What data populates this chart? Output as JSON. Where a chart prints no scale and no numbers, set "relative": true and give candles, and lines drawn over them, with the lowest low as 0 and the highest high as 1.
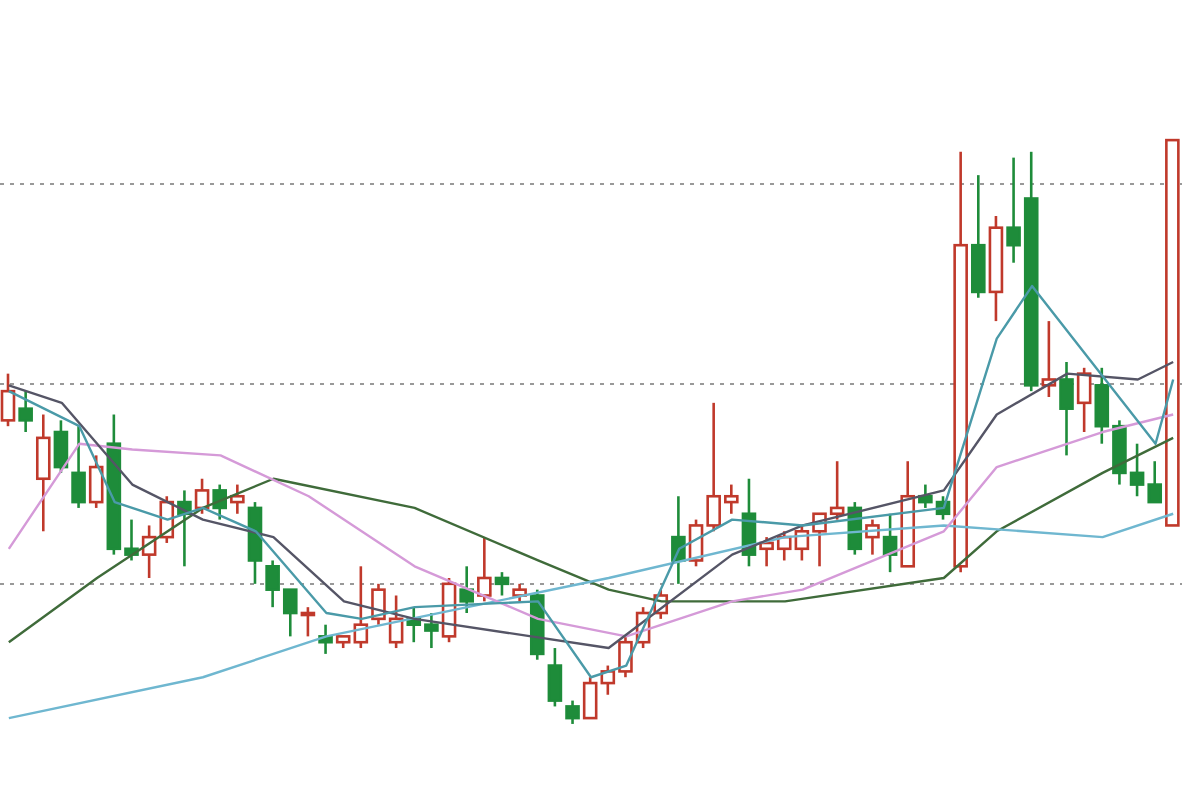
{
  "chart_data": {
    "type": "candlestick",
    "relative": true,
    "grid": "y",
    "tick_labels": false,
    "categories": [
      null,
      null,
      null,
      null,
      null,
      null,
      null,
      null,
      null,
      null,
      null,
      null,
      null,
      null,
      null,
      null,
      null,
      null,
      null,
      null,
      null,
      null,
      null,
      null,
      null,
      null,
      null,
      null,
      null,
      null,
      null,
      null,
      null,
      null,
      null,
      null,
      null,
      null,
      null,
      null,
      null,
      null,
      null,
      null,
      null,
      null,
      null,
      null,
      null,
      null,
      null,
      null,
      null,
      null,
      null,
      null,
      null,
      null,
      null,
      null,
      null,
      null,
      null,
      null,
      null,
      null,
      null
    ],
    "ohlc": [
      [
        0.52,
        0.6,
        0.51,
        0.57
      ],
      [
        0.54,
        0.57,
        0.5,
        0.52
      ],
      [
        0.42,
        0.53,
        0.33,
        0.49
      ],
      [
        0.5,
        0.52,
        0.43,
        0.44
      ],
      [
        0.43,
        0.51,
        0.37,
        0.38
      ],
      [
        0.38,
        0.46,
        0.37,
        0.44
      ],
      [
        0.48,
        0.53,
        0.29,
        0.3
      ],
      [
        0.3,
        0.35,
        0.28,
        0.29
      ],
      [
        0.29,
        0.34,
        0.25,
        0.32
      ],
      [
        0.32,
        0.39,
        0.31,
        0.38
      ],
      [
        0.38,
        0.4,
        0.27,
        0.36
      ],
      [
        0.37,
        0.42,
        0.36,
        0.4
      ],
      [
        0.4,
        0.41,
        0.35,
        0.37
      ],
      [
        0.38,
        0.41,
        0.36,
        0.39
      ],
      [
        0.37,
        0.38,
        0.24,
        0.28
      ],
      [
        0.27,
        0.28,
        0.2,
        0.23
      ],
      [
        0.23,
        0.23,
        0.15,
        0.19
      ],
      [
        0.19,
        0.2,
        0.15,
        0.19
      ],
      [
        0.15,
        0.17,
        0.12,
        0.14
      ],
      [
        0.14,
        0.15,
        0.13,
        0.15
      ],
      [
        0.14,
        0.27,
        0.13,
        0.17
      ],
      [
        0.18,
        0.24,
        0.17,
        0.23
      ],
      [
        0.14,
        0.22,
        0.13,
        0.18
      ],
      [
        0.18,
        0.2,
        0.14,
        0.17
      ],
      [
        0.17,
        0.19,
        0.13,
        0.16
      ],
      [
        0.15,
        0.25,
        0.14,
        0.24
      ],
      [
        0.23,
        0.27,
        0.19,
        0.21
      ],
      [
        0.22,
        0.32,
        0.21,
        0.25
      ],
      [
        0.25,
        0.26,
        0.22,
        0.24
      ],
      [
        0.22,
        0.24,
        0.21,
        0.23
      ],
      [
        0.22,
        0.23,
        0.11,
        0.12
      ],
      [
        0.1,
        0.13,
        0.03,
        0.04
      ],
      [
        0.03,
        0.04,
        0,
        0.01
      ],
      [
        0.01,
        0.08,
        0.01,
        0.07
      ],
      [
        0.07,
        0.1,
        0.05,
        0.09
      ],
      [
        0.09,
        0.15,
        0.08,
        0.14
      ],
      [
        0.14,
        0.2,
        0.13,
        0.19
      ],
      [
        0.19,
        0.23,
        0.18,
        0.22
      ],
      [
        0.32,
        0.39,
        0.24,
        0.28
      ],
      [
        0.28,
        0.35,
        0.27,
        0.34
      ],
      [
        0.34,
        0.55,
        0.33,
        0.39
      ],
      [
        0.38,
        0.41,
        0.36,
        0.39
      ],
      [
        0.36,
        0.42,
        0.27,
        0.29
      ],
      [
        0.3,
        0.32,
        0.27,
        0.31
      ],
      [
        0.3,
        0.33,
        0.28,
        0.32
      ],
      [
        0.3,
        0.34,
        0.28,
        0.33
      ],
      [
        0.33,
        0.36,
        0.27,
        0.36
      ],
      [
        0.36,
        0.45,
        0.35,
        0.37
      ],
      [
        0.37,
        0.38,
        0.29,
        0.3
      ],
      [
        0.32,
        0.35,
        0.29,
        0.34
      ],
      [
        0.32,
        0.36,
        0.26,
        0.29
      ],
      [
        0.27,
        0.45,
        0.27,
        0.39
      ],
      [
        0.39,
        0.41,
        0.37,
        0.38
      ],
      [
        0.38,
        0.39,
        0.35,
        0.36
      ],
      [
        0.27,
        0.98,
        0.26,
        0.82
      ],
      [
        0.82,
        0.94,
        0.73,
        0.74
      ],
      [
        0.74,
        0.87,
        0.69,
        0.85
      ],
      [
        0.85,
        0.97,
        0.79,
        0.82
      ],
      [
        0.9,
        0.98,
        0.57,
        0.58
      ],
      [
        0.58,
        0.69,
        0.56,
        0.59
      ],
      [
        0.59,
        0.62,
        0.46,
        0.54
      ],
      [
        0.55,
        0.61,
        0.5,
        0.6
      ],
      [
        0.58,
        0.61,
        0.48,
        0.51
      ],
      [
        0.51,
        0.52,
        0.41,
        0.43
      ],
      [
        0.43,
        0.48,
        0.39,
        0.41
      ],
      [
        0.41,
        0.45,
        0.38,
        0.38
      ],
      [
        0.34,
        1,
        0.34,
        1
      ]
    ],
    "series": [
      {
        "type": "line",
        "color": "#3f6b3a",
        "values": [
          0.14,
          null,
          null,
          null,
          null,
          0.25,
          null,
          null,
          null,
          null,
          null,
          0.37,
          null,
          null,
          null,
          0.42,
          null,
          null,
          null,
          null,
          null,
          null,
          null,
          0.37,
          null,
          null,
          null,
          null,
          null,
          null,
          0.28,
          null,
          null,
          null,
          0.23,
          null,
          null,
          0.21,
          null,
          null,
          null,
          null,
          null,
          null,
          0.21,
          null,
          null,
          null,
          null,
          null,
          null,
          null,
          null,
          0.25,
          null,
          null,
          0.33,
          null,
          null,
          null,
          null,
          null,
          0.43,
          null,
          null,
          null,
          0.49
        ]
      },
      {
        "type": "line",
        "color": "#6fb7d0",
        "values": [
          0.01,
          null,
          null,
          null,
          null,
          null,
          null,
          null,
          null,
          null,
          null,
          0.08,
          null,
          null,
          null,
          null,
          null,
          null,
          0.15,
          null,
          null,
          null,
          null,
          null,
          null,
          null,
          0.2,
          null,
          null,
          null,
          null,
          null,
          null,
          null,
          0.25,
          null,
          null,
          null,
          null,
          null,
          null,
          null,
          null,
          null,
          0.32,
          null,
          null,
          null,
          null,
          null,
          null,
          null,
          null,
          0.34,
          null,
          null,
          null,
          null,
          null,
          null,
          null,
          null,
          0.32,
          null,
          null,
          null,
          0.36
        ]
      },
      {
        "type": "line",
        "color": "#d59ad8",
        "values": [
          0.3,
          null,
          null,
          null,
          0.48,
          null,
          null,
          0.47,
          null,
          null,
          null,
          null,
          0.46,
          null,
          null,
          null,
          null,
          0.39,
          null,
          null,
          null,
          null,
          null,
          0.27,
          null,
          null,
          null,
          null,
          null,
          null,
          0.18,
          null,
          null,
          null,
          null,
          0.15,
          null,
          null,
          null,
          null,
          null,
          0.21,
          null,
          null,
          null,
          0.23,
          null,
          null,
          null,
          null,
          null,
          null,
          null,
          0.33,
          null,
          null,
          0.44,
          null,
          null,
          null,
          null,
          null,
          0.5,
          null,
          null,
          null,
          0.53
        ]
      },
      {
        "type": "line",
        "color": "#555566",
        "values": [
          0.58,
          null,
          null,
          0.55,
          null,
          null,
          null,
          0.41,
          null,
          null,
          null,
          0.35,
          null,
          null,
          null,
          0.32,
          null,
          null,
          null,
          0.21,
          null,
          null,
          null,
          0.18,
          null,
          null,
          null,
          null,
          null,
          null,
          null,
          null,
          null,
          null,
          0.13,
          null,
          null,
          null,
          null,
          null,
          null,
          0.29,
          null,
          null,
          null,
          0.34,
          null,
          null,
          null,
          null,
          null,
          null,
          null,
          0.4,
          null,
          null,
          0.53,
          null,
          null,
          null,
          0.6,
          null,
          null,
          null,
          0.59,
          null,
          0.62
        ]
      },
      {
        "type": "line",
        "color": "#4a9aa8",
        "values": [
          0.57,
          null,
          null,
          null,
          0.51,
          null,
          0.38,
          null,
          null,
          0.35,
          null,
          0.37,
          null,
          null,
          0.33,
          null,
          null,
          null,
          0.19,
          null,
          0.18,
          null,
          null,
          0.2,
          null,
          null,
          null,
          null,
          null,
          null,
          0.21,
          null,
          null,
          0.08,
          null,
          0.1,
          null,
          null,
          0.3,
          null,
          null,
          0.35,
          null,
          null,
          null,
          0.34,
          null,
          null,
          null,
          null,
          null,
          null,
          null,
          0.37,
          null,
          null,
          0.66,
          null,
          0.75,
          null,
          null,
          null,
          null,
          null,
          null,
          0.48,
          0.59
        ]
      }
    ]
  }
}
